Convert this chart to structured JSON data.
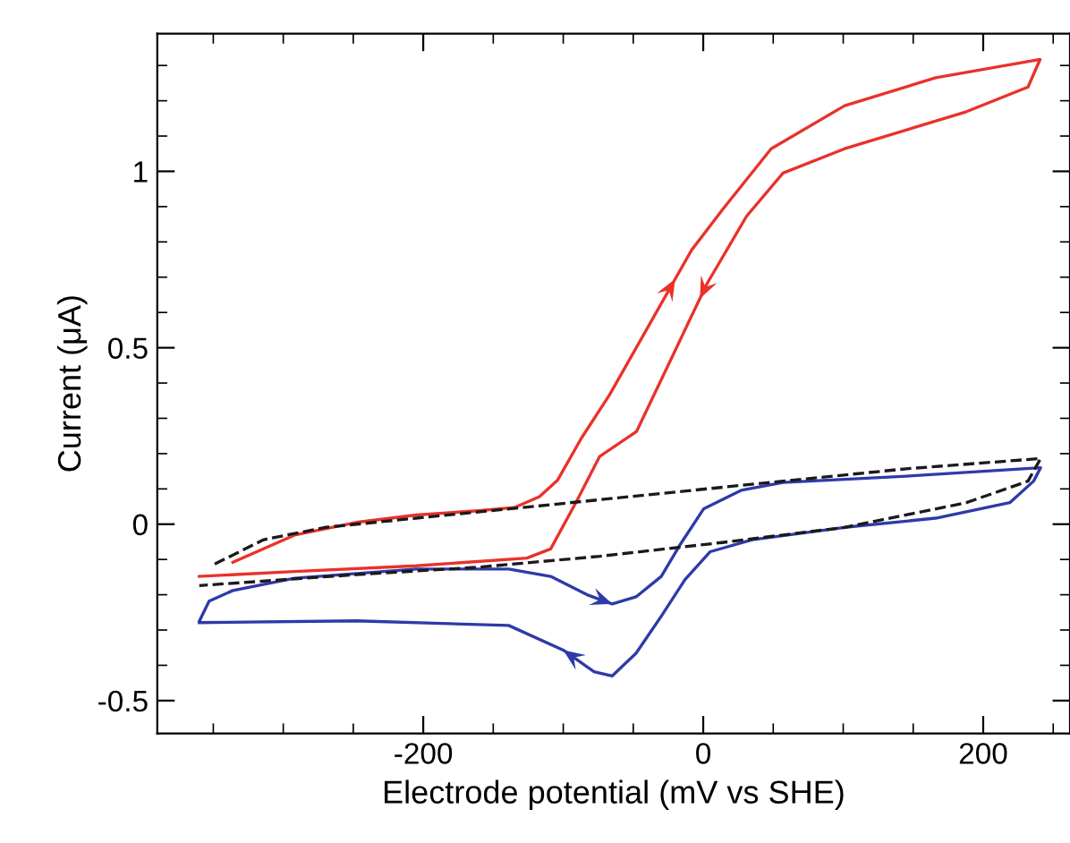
{
  "chart_data": {
    "type": "line",
    "xlabel": "Electrode potential (mV vs SHE)",
    "ylabel": "Current (μA)",
    "xlim": [
      -390,
      262
    ],
    "ylim": [
      -0.593,
      1.39
    ],
    "xticks": [
      -200,
      0,
      200
    ],
    "yticks": [
      -0.5,
      0,
      0.5,
      1
    ],
    "grid": false,
    "legend": false,
    "marker": "none",
    "line_style": "solid",
    "series": [
      {
        "color": "#e8322b",
        "x": [
          -336,
          -292,
          -248,
          -205,
          -161,
          -135,
          -117,
          -104,
          -87,
          -67,
          -8.3,
          13.5,
          48.5,
          101,
          166,
          240.6,
          232,
          188,
          101,
          57,
          31,
          2.6,
          -47.6,
          -74,
          -91,
          -109,
          -126,
          -205,
          -292,
          -360
        ],
        "values": [
          -0.108,
          -0.031,
          0.005,
          0.026,
          0.038,
          0.047,
          0.078,
          0.125,
          0.244,
          0.366,
          0.777,
          0.89,
          1.064,
          1.186,
          1.265,
          1.317,
          1.239,
          1.169,
          1.064,
          0.995,
          0.873,
          0.681,
          0.263,
          0.192,
          0.061,
          -0.07,
          -0.096,
          -0.118,
          -0.134,
          -0.148
        ]
      },
      {
        "color": "#2e3aa8",
        "x": [
          -360,
          -353,
          -336,
          -292,
          -205,
          -139,
          -109,
          -83,
          -65,
          -48,
          -30,
          -17,
          0.4,
          27,
          57,
          145,
          241,
          236,
          219,
          166,
          101,
          35,
          5,
          -13,
          -30,
          -48,
          -65,
          -78,
          -100,
          -139,
          -248,
          -360
        ],
        "values": [
          -0.275,
          -0.218,
          -0.188,
          -0.153,
          -0.127,
          -0.127,
          -0.148,
          -0.2,
          -0.226,
          -0.206,
          -0.148,
          -0.061,
          0.044,
          0.096,
          0.118,
          0.136,
          0.16,
          0.122,
          0.061,
          0.017,
          -0.009,
          -0.044,
          -0.078,
          -0.157,
          -0.261,
          -0.366,
          -0.43,
          -0.418,
          -0.357,
          -0.287,
          -0.274,
          -0.279
        ]
      },
      {
        "color": "#1a1a1a",
        "line_style": "dashed",
        "x": [
          -349,
          -314,
          -270,
          -205,
          -117,
          -30,
          57,
          145,
          241,
          232,
          188,
          101,
          13.5,
          -74,
          -161,
          -248,
          -360
        ],
        "values": [
          -0.113,
          -0.044,
          -0.009,
          0.017,
          0.052,
          0.087,
          0.122,
          0.157,
          0.186,
          0.122,
          0.061,
          -0.009,
          -0.052,
          -0.091,
          -0.122,
          -0.143,
          -0.174
        ]
      }
    ]
  }
}
